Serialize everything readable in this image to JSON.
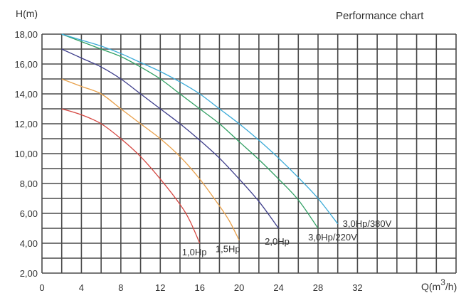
{
  "chart_data": {
    "type": "line",
    "title": "Performance chart",
    "ylabel": "H(m)",
    "xlabel": "Q(m³/h)",
    "xlabel_base": "Q(m",
    "xlabel_sup": "3",
    "xlabel_tail": "/h)",
    "xlim": [
      0,
      42
    ],
    "ylim": [
      2,
      18
    ],
    "grid": true,
    "x_grid_step": 2,
    "y_grid_step": 1,
    "xticks": [
      0,
      4,
      8,
      12,
      16,
      20,
      24,
      28,
      32
    ],
    "xtick_labels": [
      "0",
      "4",
      "8",
      "12",
      "16",
      "20",
      "24",
      "28",
      "32"
    ],
    "yticks": [
      2,
      4,
      6,
      8,
      10,
      12,
      14,
      16,
      18
    ],
    "ytick_labels": [
      "2,00",
      "4,00",
      "6,00",
      "8,00",
      "10,00",
      "12,00",
      "14,00",
      "16,00",
      "18,00"
    ],
    "series": [
      {
        "name": "1,0Hp",
        "color": "#d4453f",
        "label_at": [
          14.2,
          3.2
        ],
        "x": [
          2,
          4,
          6,
          8,
          10,
          12,
          14,
          15,
          16
        ],
        "y": [
          13,
          12.6,
          12,
          11,
          9.8,
          8.3,
          6.6,
          5.5,
          4
        ]
      },
      {
        "name": "1,5Hp",
        "color": "#e8a04a",
        "label_at": [
          17.6,
          3.4
        ],
        "x": [
          2,
          4,
          6,
          8,
          10,
          12,
          14,
          16,
          18,
          19,
          20
        ],
        "y": [
          15,
          14.5,
          14,
          13,
          12,
          11,
          9.8,
          8.3,
          6.5,
          5.5,
          4.2
        ]
      },
      {
        "name": "2,0Hp",
        "color": "#3c3c8a",
        "label_at": [
          22.6,
          3.9
        ],
        "x": [
          2,
          4,
          6,
          8,
          10,
          12,
          14,
          16,
          18,
          20,
          22,
          24
        ],
        "y": [
          17,
          16.4,
          15.8,
          15,
          14,
          13,
          12,
          10.9,
          9.7,
          8.3,
          6.8,
          5
        ]
      },
      {
        "name": "3,0Hp/220V",
        "color": "#2f9f62",
        "label_at": [
          27,
          4.2
        ],
        "x": [
          2,
          4,
          6,
          8,
          10,
          12,
          14,
          16,
          18,
          20,
          22,
          24,
          26,
          28
        ],
        "y": [
          18,
          17.5,
          17,
          16.5,
          15.8,
          15,
          14,
          13,
          12,
          10.8,
          9.6,
          8.3,
          6.9,
          5
        ]
      },
      {
        "name": "3,0Hp/380V",
        "color": "#3aaad8",
        "label_at": [
          30.5,
          5.1
        ],
        "x": [
          2,
          4,
          6,
          8,
          10,
          12,
          14,
          16,
          18,
          20,
          22,
          24,
          26,
          28,
          30
        ],
        "y": [
          18,
          17.6,
          17.2,
          16.7,
          16.1,
          15.5,
          14.8,
          14,
          13,
          12,
          10.9,
          9.7,
          8.4,
          7,
          5.3
        ]
      }
    ]
  }
}
